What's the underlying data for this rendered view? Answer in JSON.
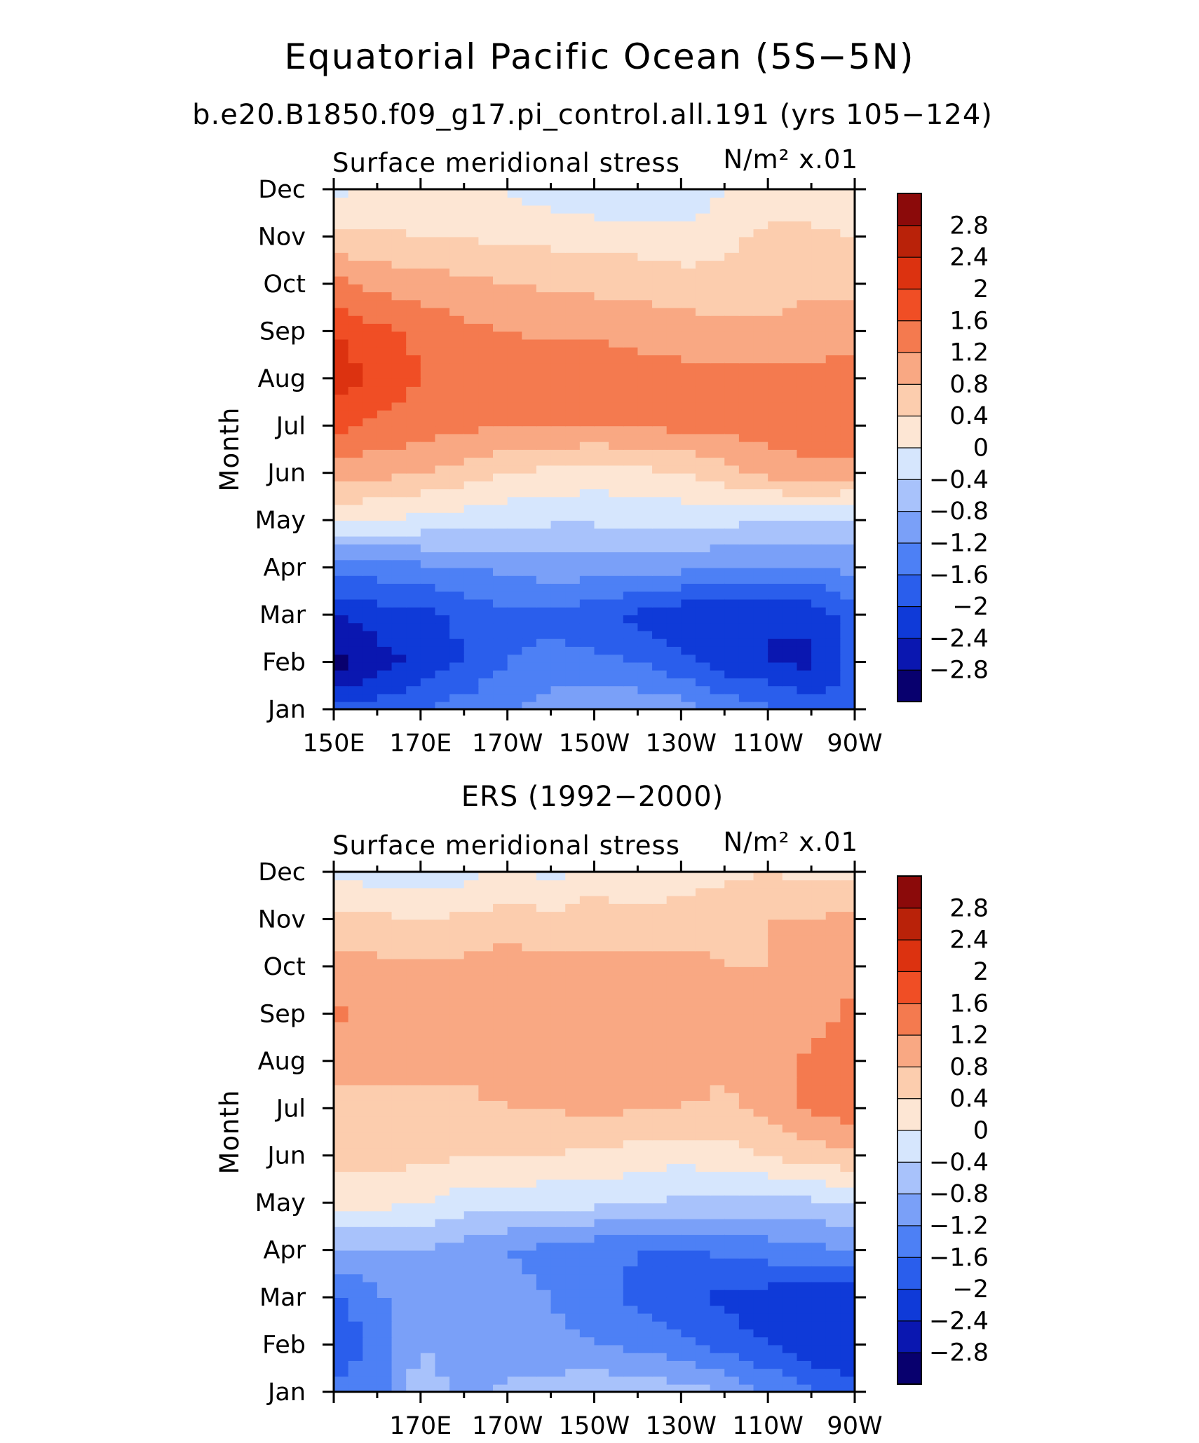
{
  "figure": {
    "title": "Equatorial Pacific Ocean (5S−5N)"
  },
  "chart_data": [
    {
      "type": "heatmap",
      "title": "b.e20.B1850.f09_g17.pi_control.all.191 (yrs 105−124)",
      "left_label": "Surface meridional stress",
      "units_label": "N/m² x.01",
      "xlabel": "",
      "ylabel": "Month",
      "x_values": [
        150,
        160,
        170,
        180,
        190,
        200,
        210,
        220,
        230,
        240,
        250,
        260,
        270
      ],
      "xlim": [
        150,
        270
      ],
      "x_tick_labels": [
        {
          "value": 150,
          "label": "150E"
        },
        {
          "value": 170,
          "label": "170E"
        },
        {
          "value": 190,
          "label": "170W"
        },
        {
          "value": 210,
          "label": "150W"
        },
        {
          "value": 230,
          "label": "130W"
        },
        {
          "value": 250,
          "label": "110W"
        },
        {
          "value": 270,
          "label": "90W"
        }
      ],
      "months": [
        "Jan",
        "Feb",
        "Mar",
        "Apr",
        "May",
        "Jun",
        "Jul",
        "Aug",
        "Sep",
        "Oct",
        "Nov",
        "Dec"
      ],
      "z": [
        [
          -1.9,
          -1.8,
          -1.6,
          -1.4,
          -1.2,
          -1.0,
          -0.9,
          -0.9,
          -1.0,
          -1.3,
          -1.5,
          -1.8,
          -1.9
        ],
        [
          -3.0,
          -2.6,
          -2.3,
          -2.0,
          -1.6,
          -1.5,
          -1.5,
          -1.6,
          -1.9,
          -2.2,
          -2.4,
          -2.5,
          -1.9
        ],
        [
          -2.4,
          -2.2,
          -2.1,
          -1.9,
          -1.7,
          -1.7,
          -1.9,
          -2.1,
          -2.3,
          -2.4,
          -2.4,
          -2.3,
          -1.7
        ],
        [
          -1.5,
          -1.4,
          -1.3,
          -1.2,
          -1.1,
          -1.0,
          -1.0,
          -1.0,
          -1.1,
          -1.2,
          -1.2,
          -1.2,
          -1.1
        ],
        [
          0.1,
          0.0,
          -0.1,
          -0.2,
          -0.3,
          -0.35,
          -0.35,
          -0.3,
          -0.3,
          -0.3,
          -0.4,
          -0.4,
          -0.5
        ],
        [
          1.0,
          0.9,
          0.8,
          0.6,
          0.4,
          0.3,
          0.2,
          0.3,
          0.4,
          0.6,
          0.9,
          1.1,
          1.0
        ],
        [
          1.7,
          1.5,
          1.4,
          1.3,
          1.2,
          1.2,
          1.2,
          1.25,
          1.3,
          1.35,
          1.4,
          1.4,
          1.6
        ],
        [
          2.2,
          1.9,
          1.6,
          1.5,
          1.45,
          1.5,
          1.65,
          1.45,
          1.35,
          1.3,
          1.3,
          1.3,
          1.4
        ],
        [
          2.0,
          1.7,
          1.5,
          1.3,
          1.2,
          1.1,
          1.1,
          1.0,
          1.0,
          0.9,
          0.9,
          1.0,
          1.0
        ],
        [
          1.3,
          1.1,
          1.0,
          0.9,
          0.8,
          0.75,
          0.7,
          0.7,
          0.6,
          0.5,
          0.6,
          0.7,
          0.7
        ],
        [
          0.5,
          0.5,
          0.4,
          0.4,
          0.3,
          0.3,
          0.2,
          0.2,
          0.1,
          0.3,
          0.5,
          0.5,
          0.4
        ],
        [
          -0.1,
          0.1,
          0.2,
          0.1,
          0.0,
          -0.2,
          -0.3,
          -0.35,
          -0.3,
          0.0,
          0.2,
          0.1,
          0.1
        ]
      ]
    },
    {
      "type": "heatmap",
      "title": "ERS (1992−2000)",
      "left_label": "Surface meridional stress",
      "units_label": "N/m² x.01",
      "xlabel": "",
      "ylabel": "Month",
      "x_values": [
        150,
        160,
        170,
        180,
        190,
        200,
        210,
        220,
        230,
        240,
        250,
        260,
        270
      ],
      "xlim": [
        150,
        270
      ],
      "x_tick_labels": [
        {
          "value": 170,
          "label": "170E"
        },
        {
          "value": 190,
          "label": "170W"
        },
        {
          "value": 210,
          "label": "150W"
        },
        {
          "value": 230,
          "label": "130W"
        },
        {
          "value": 250,
          "label": "110W"
        },
        {
          "value": 270,
          "label": "90W"
        }
      ],
      "months": [
        "Jan",
        "Feb",
        "Mar",
        "Apr",
        "May",
        "Jun",
        "Jul",
        "Aug",
        "Sep",
        "Oct",
        "Nov",
        "Dec"
      ],
      "z": [
        [
          -1.5,
          -1.3,
          -0.6,
          -0.9,
          -0.7,
          -0.6,
          -0.5,
          -0.5,
          -0.6,
          -0.8,
          -1.2,
          -1.6,
          -1.8
        ],
        [
          -1.9,
          -1.5,
          -0.8,
          -1.1,
          -1.1,
          -1.1,
          -1.2,
          -1.3,
          -1.5,
          -1.8,
          -2.0,
          -2.3,
          -2.4
        ],
        [
          -1.7,
          -1.3,
          -0.9,
          -1.2,
          -1.1,
          -1.2,
          -1.4,
          -1.7,
          -1.9,
          -2.1,
          -2.2,
          -2.4,
          -2.3
        ],
        [
          -0.8,
          -0.8,
          -0.8,
          -1.0,
          -1.2,
          -1.3,
          -1.5,
          -1.6,
          -1.7,
          -1.5,
          -1.4,
          -1.3,
          -1.2
        ],
        [
          0.1,
          0.1,
          0.0,
          -0.2,
          -0.3,
          -0.3,
          -0.3,
          -0.4,
          -0.5,
          -0.5,
          -0.6,
          -0.5,
          -0.4
        ],
        [
          0.5,
          0.6,
          0.5,
          0.4,
          0.45,
          0.4,
          0.3,
          0.2,
          0.15,
          0.2,
          0.4,
          0.6,
          0.7
        ],
        [
          0.7,
          0.8,
          0.7,
          0.7,
          0.8,
          0.8,
          0.9,
          0.8,
          0.8,
          0.7,
          0.9,
          1.3,
          1.4
        ],
        [
          0.9,
          0.8,
          0.9,
          0.9,
          1.0,
          1.0,
          1.0,
          1.0,
          1.0,
          0.9,
          1.0,
          1.3,
          1.4
        ],
        [
          1.3,
          0.9,
          0.9,
          0.9,
          0.9,
          1.0,
          1.0,
          0.9,
          0.9,
          0.9,
          0.8,
          1.0,
          1.3
        ],
        [
          1.0,
          0.9,
          0.9,
          0.9,
          1.0,
          0.9,
          0.9,
          0.9,
          0.9,
          0.8,
          0.8,
          0.9,
          1.1
        ],
        [
          0.5,
          0.5,
          0.4,
          0.5,
          0.6,
          0.5,
          0.6,
          0.5,
          0.6,
          0.7,
          0.8,
          0.8,
          0.9
        ],
        [
          -0.1,
          -0.2,
          -0.3,
          -0.2,
          0.1,
          -0.1,
          0.2,
          0.1,
          0.2,
          0.3,
          0.4,
          0.3,
          0.3
        ]
      ]
    }
  ],
  "colorbar": {
    "levels": [
      -3.2,
      -2.8,
      -2.4,
      -2.0,
      -1.6,
      -1.2,
      -0.8,
      -0.4,
      0,
      0.4,
      0.8,
      1.2,
      1.6,
      2.0,
      2.4,
      2.8,
      3.2
    ],
    "labels": [
      "−2.8",
      "−2.4",
      "−2",
      "−1.6",
      "−1.2",
      "−0.8",
      "−0.4",
      "0",
      "0.4",
      "0.8",
      "1.2",
      "1.6",
      "2",
      "2.4",
      "2.8"
    ],
    "colors": [
      "#08006e",
      "#0a17b0",
      "#0f3ad8",
      "#2a5eec",
      "#4d80f5",
      "#7aa0f8",
      "#a8c2fb",
      "#d6e6fd",
      "#fde6d4",
      "#fccdae",
      "#f9a883",
      "#f47a4f",
      "#f04e25",
      "#dc3210",
      "#b92209",
      "#8b0a0a"
    ]
  }
}
